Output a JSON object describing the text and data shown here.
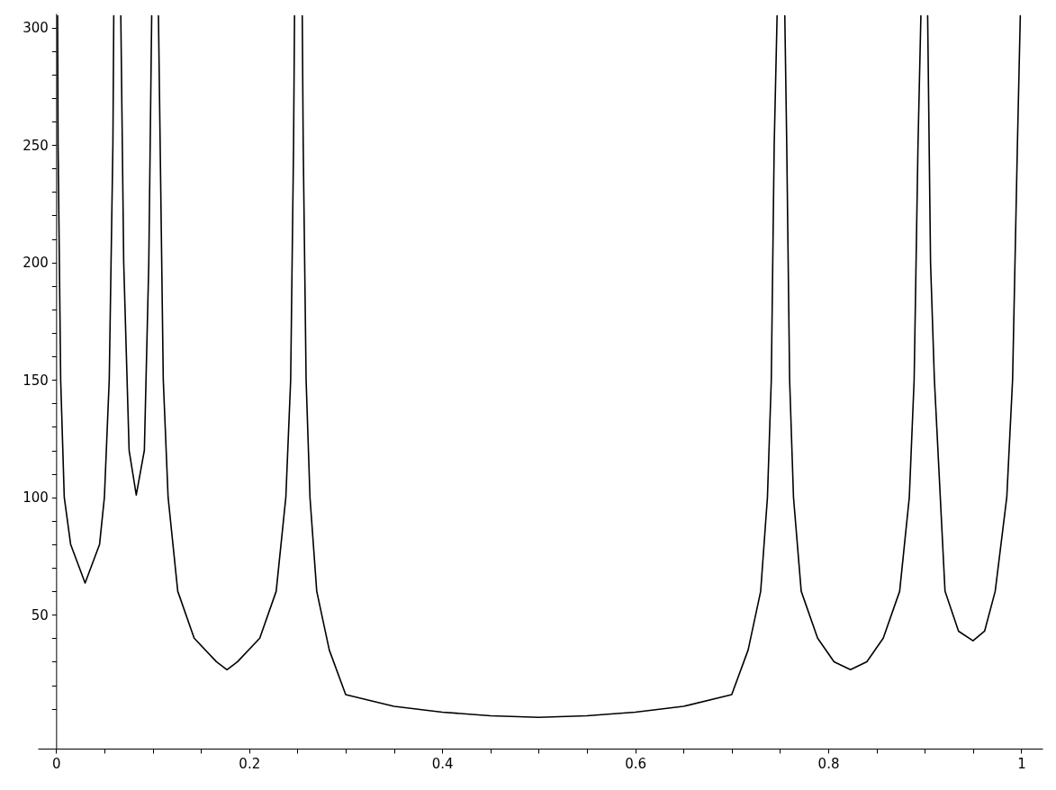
{
  "chart_data": {
    "type": "line",
    "x": [
      0.0015,
      0.002,
      0.0047,
      0.0084,
      0.015,
      0.03,
      0.045,
      0.05,
      0.055,
      0.0588,
      0.0597,
      0.063,
      0.067,
      0.07,
      0.0756,
      0.083,
      0.0914,
      0.096,
      0.099,
      0.102,
      0.106,
      0.111,
      0.116,
      0.126,
      0.143,
      0.166,
      0.177,
      0.188,
      0.211,
      0.228,
      0.238,
      0.243,
      0.246,
      0.247,
      0.251,
      0.255,
      0.256,
      0.259,
      0.263,
      0.27,
      0.283,
      0.3,
      0.35,
      0.4,
      0.45,
      0.5,
      0.55,
      0.6,
      0.65,
      0.7,
      0.717,
      0.73,
      0.737,
      0.741,
      0.744,
      0.747,
      0.751,
      0.755,
      0.757,
      0.76,
      0.764,
      0.772,
      0.789,
      0.806,
      0.823,
      0.84,
      0.857,
      0.874,
      0.884,
      0.889,
      0.893,
      0.896,
      0.9,
      0.903,
      0.906,
      0.91,
      0.921,
      0.935,
      0.95,
      0.962,
      0.973,
      0.985,
      0.991,
      0.996,
      0.999
    ],
    "series": [
      {
        "color": "#000000",
        "values": [
          305,
          250,
          150,
          100,
          80,
          63.5,
          80,
          100,
          150,
          250,
          305,
          null,
          305,
          200,
          120,
          101,
          120,
          200,
          305,
          null,
          305,
          150,
          100,
          60,
          40,
          30,
          26.6,
          30,
          40,
          60,
          100,
          150,
          250,
          305,
          null,
          305,
          250,
          150,
          100,
          60,
          35,
          16,
          11,
          8.5,
          7,
          6.3,
          7,
          8.5,
          11,
          16,
          35,
          60,
          100,
          150,
          250,
          305,
          null,
          305,
          250,
          150,
          100,
          60,
          40,
          30,
          26.6,
          30,
          40,
          60,
          100,
          150,
          250,
          305,
          null,
          305,
          200,
          150,
          60,
          43,
          38.9,
          43,
          60,
          100,
          150,
          250,
          305
        ]
      }
    ],
    "xlim": [
      -0.019,
      1.022
    ],
    "ylim": [
      -7,
      306
    ],
    "xticks": [
      0,
      {
        "value": 0.05,
        "label": null
      },
      {
        "value": 0.1,
        "label": null
      },
      {
        "value": 0.15,
        "label": null
      },
      0.2,
      {
        "value": 0.25,
        "label": null
      },
      {
        "value": 0.3,
        "label": null
      },
      {
        "value": 0.35,
        "label": null
      },
      0.4,
      {
        "value": 0.45,
        "label": null
      },
      {
        "value": 0.5,
        "label": null
      },
      {
        "value": 0.55,
        "label": null
      },
      0.6,
      {
        "value": 0.65,
        "label": null
      },
      {
        "value": 0.7,
        "label": null
      },
      {
        "value": 0.75,
        "label": null
      },
      0.8,
      {
        "value": 0.85,
        "label": null
      },
      {
        "value": 0.9,
        "label": null
      },
      {
        "value": 0.95,
        "label": null
      },
      1
    ],
    "yticks": [
      {
        "value": 10,
        "label": null
      },
      {
        "value": 20,
        "label": null
      },
      {
        "value": 30,
        "label": null
      },
      {
        "value": 40,
        "label": null
      },
      50,
      {
        "value": 60,
        "label": null
      },
      {
        "value": 70,
        "label": null
      },
      {
        "value": 80,
        "label": null
      },
      {
        "value": 90,
        "label": null
      },
      100,
      {
        "value": 110,
        "label": null
      },
      {
        "value": 120,
        "label": null
      },
      {
        "value": 130,
        "label": null
      },
      {
        "value": 140,
        "label": null
      },
      150,
      {
        "value": 160,
        "label": null
      },
      {
        "value": 170,
        "label": null
      },
      {
        "value": 180,
        "label": null
      },
      {
        "value": 190,
        "label": null
      },
      200,
      {
        "value": 210,
        "label": null
      },
      {
        "value": 220,
        "label": null
      },
      {
        "value": 230,
        "label": null
      },
      {
        "value": 240,
        "label": null
      },
      250,
      {
        "value": 260,
        "label": null
      },
      {
        "value": 270,
        "label": null
      },
      {
        "value": 280,
        "label": null
      },
      {
        "value": 290,
        "label": null
      },
      300
    ]
  }
}
